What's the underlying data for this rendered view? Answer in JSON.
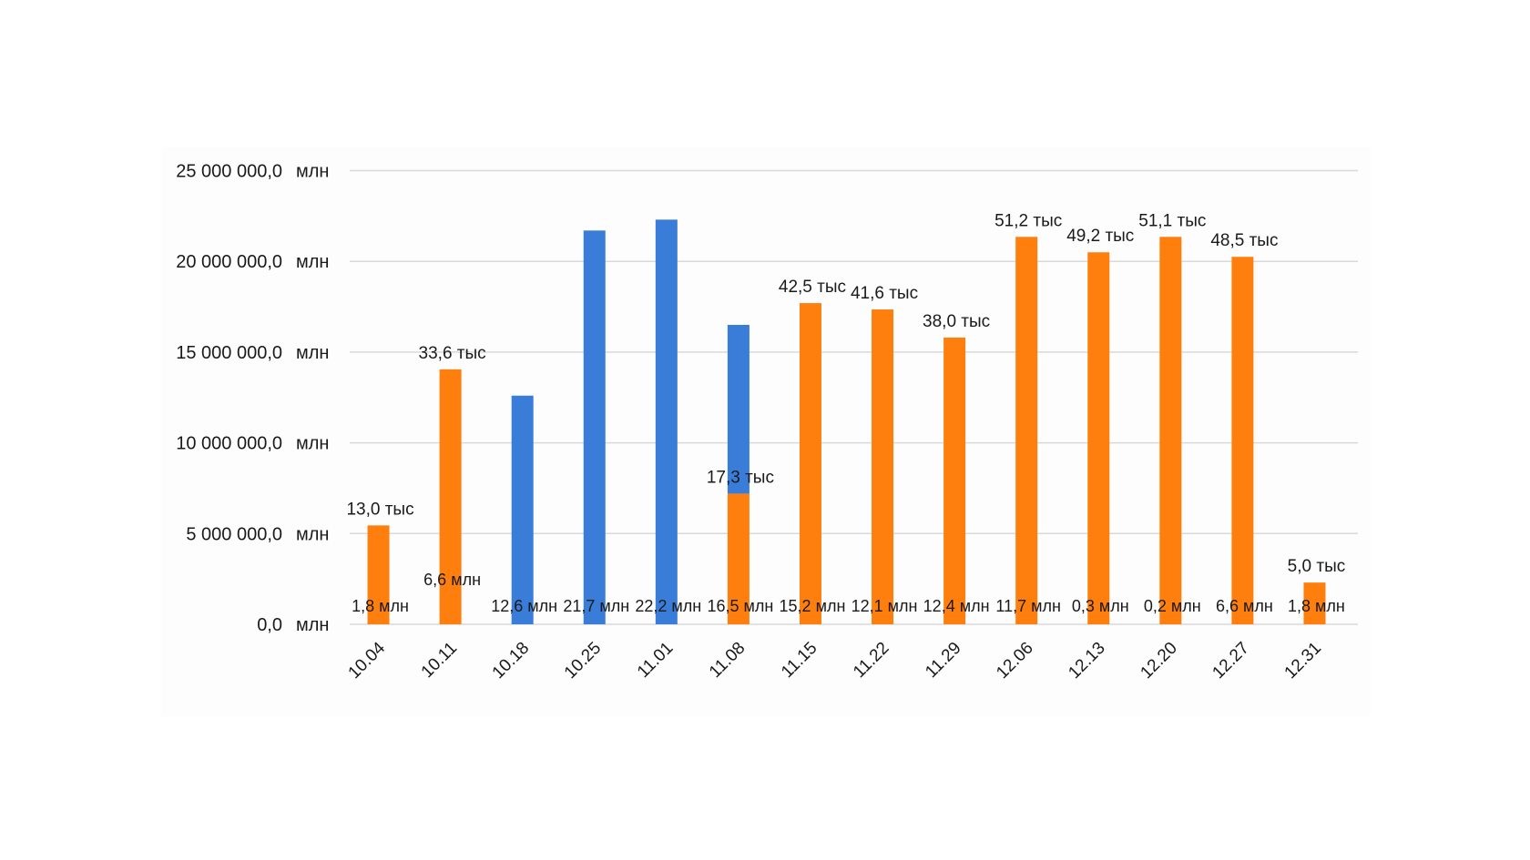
{
  "chart_data": {
    "type": "bar",
    "stacked": true,
    "title": "",
    "xlabel": "",
    "ylabel": "",
    "ylim": [
      0,
      25000000
    ],
    "grid": true,
    "legend": "none",
    "categories": [
      "10.04",
      "10.11",
      "10.18",
      "10.25",
      "11.01",
      "11.08",
      "11.15",
      "11.22",
      "11.29",
      "12.06",
      "12.13",
      "12.20",
      "12.27",
      "12.31"
    ],
    "y_ticks": [
      {
        "value": 0,
        "label": "0,0",
        "unit": "млн"
      },
      {
        "value": 5000000,
        "label": "5 000 000,0",
        "unit": "млн"
      },
      {
        "value": 10000000,
        "label": "10 000 000,0",
        "unit": "млн"
      },
      {
        "value": 15000000,
        "label": "15 000 000,0",
        "unit": "млн"
      },
      {
        "value": 20000000,
        "label": "20 000 000,0",
        "unit": "млн"
      },
      {
        "value": 25000000,
        "label": "25 000 000,0",
        "unit": "млн"
      }
    ],
    "series": [
      {
        "name": "orange",
        "color": "#ff7f0e",
        "values": [
          5450000,
          14050000,
          0,
          0,
          0,
          7200000,
          17700000,
          17350000,
          15800000,
          21350000,
          20500000,
          21350000,
          20250000,
          2300000
        ]
      },
      {
        "name": "blue",
        "color": "#3a7dd8",
        "values": [
          0,
          0,
          12600000,
          21700000,
          22300000,
          9300000,
          0,
          0,
          0,
          0,
          0,
          0,
          0,
          0
        ]
      }
    ],
    "top_labels": [
      "13,0 тыс",
      "33,6 тыс",
      "",
      "",
      "",
      "17,3 тыс",
      "42,5 тыс",
      "41,6 тыс",
      "38,0 тыс",
      "51,2 тыс",
      "49,2 тыс",
      "51,1 тыс",
      "48,5 тыс",
      "5,0 тыс"
    ],
    "bottom_labels": [
      "1,8 млн",
      "6,6 млн",
      "12,6 млн",
      "21,7 млн",
      "22,2 млн",
      "16,5 млн",
      "15,2 млн",
      "12,1 млн",
      "12,4 млн",
      "11,7 млн",
      "0,3 млн",
      "0,2 млн",
      "6,6 млн",
      "1,8 млн"
    ],
    "gridline_color": "#d9d9d9",
    "plot_bg": "#fdfdfd"
  }
}
